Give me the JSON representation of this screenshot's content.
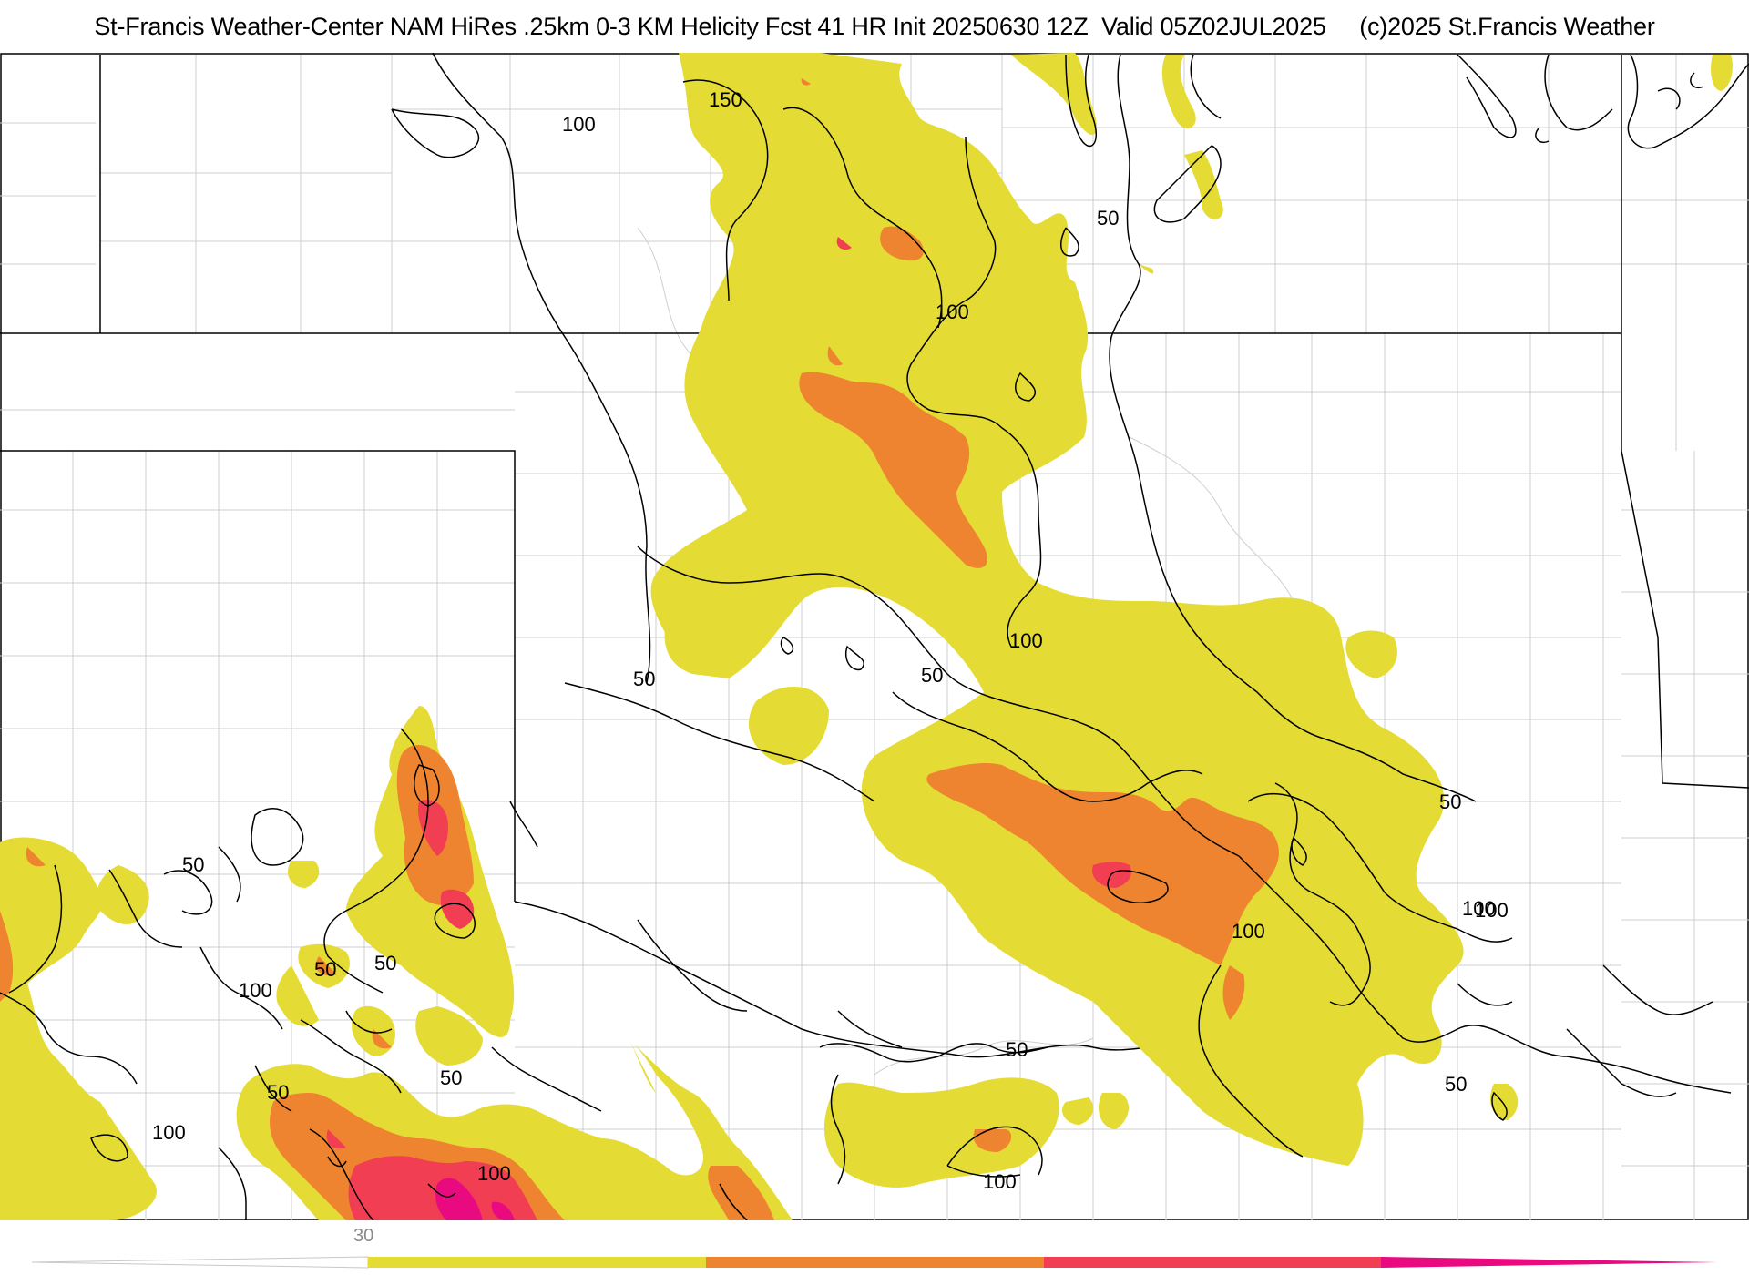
{
  "title": "St-Francis Weather-Center NAM HiRes .25km 0-3 KM Helicity Fcst 41 HR Init 20250630 12Z  Valid 05Z02JUL2025     (c)2025 St.Francis Weather",
  "colors": {
    "level_1": "#e4dc34",
    "level_2": "#ee8430",
    "level_3": "#f23e52",
    "level_4": "#ea0a80",
    "contour": "#000000",
    "county_line": "#c8c8c8",
    "state_line": "#000000"
  },
  "contour_labels": [
    {
      "id": "c1",
      "text": "150"
    },
    {
      "id": "c2",
      "text": "100"
    },
    {
      "id": "c3",
      "text": "50"
    },
    {
      "id": "c4",
      "text": "100"
    },
    {
      "id": "c5",
      "text": "100"
    },
    {
      "id": "c6",
      "text": "50"
    },
    {
      "id": "c7",
      "text": "50"
    },
    {
      "id": "c8",
      "text": "50"
    },
    {
      "id": "c9",
      "text": "100"
    },
    {
      "id": "c10",
      "text": "50"
    },
    {
      "id": "c11",
      "text": "50"
    },
    {
      "id": "c12",
      "text": "100"
    },
    {
      "id": "c13",
      "text": "50"
    },
    {
      "id": "c14",
      "text": "50"
    },
    {
      "id": "c15",
      "text": "50"
    },
    {
      "id": "c16",
      "text": "100"
    },
    {
      "id": "c17",
      "text": "100"
    },
    {
      "id": "c18",
      "text": "100"
    },
    {
      "id": "c19",
      "text": "50"
    },
    {
      "id": "c20",
      "text": "100"
    },
    {
      "id": "c21",
      "text": "50"
    },
    {
      "id": "c22",
      "text": "100"
    }
  ],
  "colorbar": {
    "tick_label": "30",
    "segments": [
      "level_1",
      "level_2",
      "level_3",
      "level_4"
    ]
  }
}
